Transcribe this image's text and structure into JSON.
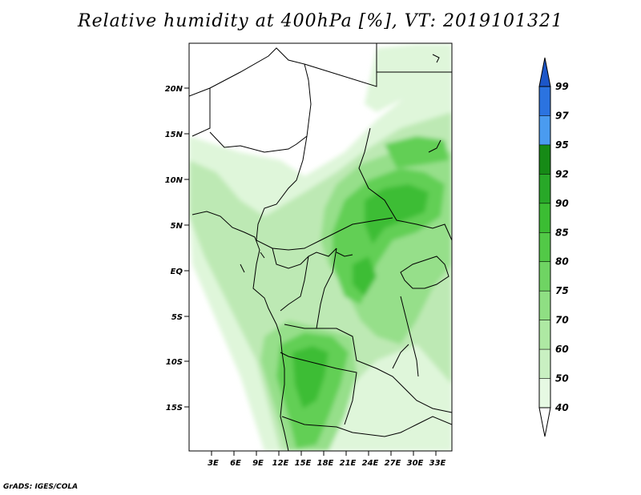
{
  "title": "Relative humidity at 400hPa [%], VT: 2019101321",
  "credit": "GrADS: IGES/COLA",
  "map": {
    "lat_ticks": [
      "20N",
      "15N",
      "10N",
      "5N",
      "EQ",
      "5S",
      "10S",
      "15S"
    ],
    "lon_ticks": [
      "3E",
      "6E",
      "9E",
      "12E",
      "15E",
      "18E",
      "21E",
      "24E",
      "27E",
      "30E",
      "33E"
    ]
  },
  "colorbar": {
    "labels": [
      "40",
      "50",
      "60",
      "70",
      "75",
      "80",
      "85",
      "90",
      "92",
      "95",
      "97",
      "99"
    ],
    "colors": [
      "#ffffff",
      "#e6f9e3",
      "#c9f0c2",
      "#aee9a3",
      "#8fdf83",
      "#6fd463",
      "#52c947",
      "#3bbd33",
      "#28a828",
      "#168a16",
      "#4a9bf0",
      "#2b73e0",
      "#1c56c8"
    ]
  }
}
